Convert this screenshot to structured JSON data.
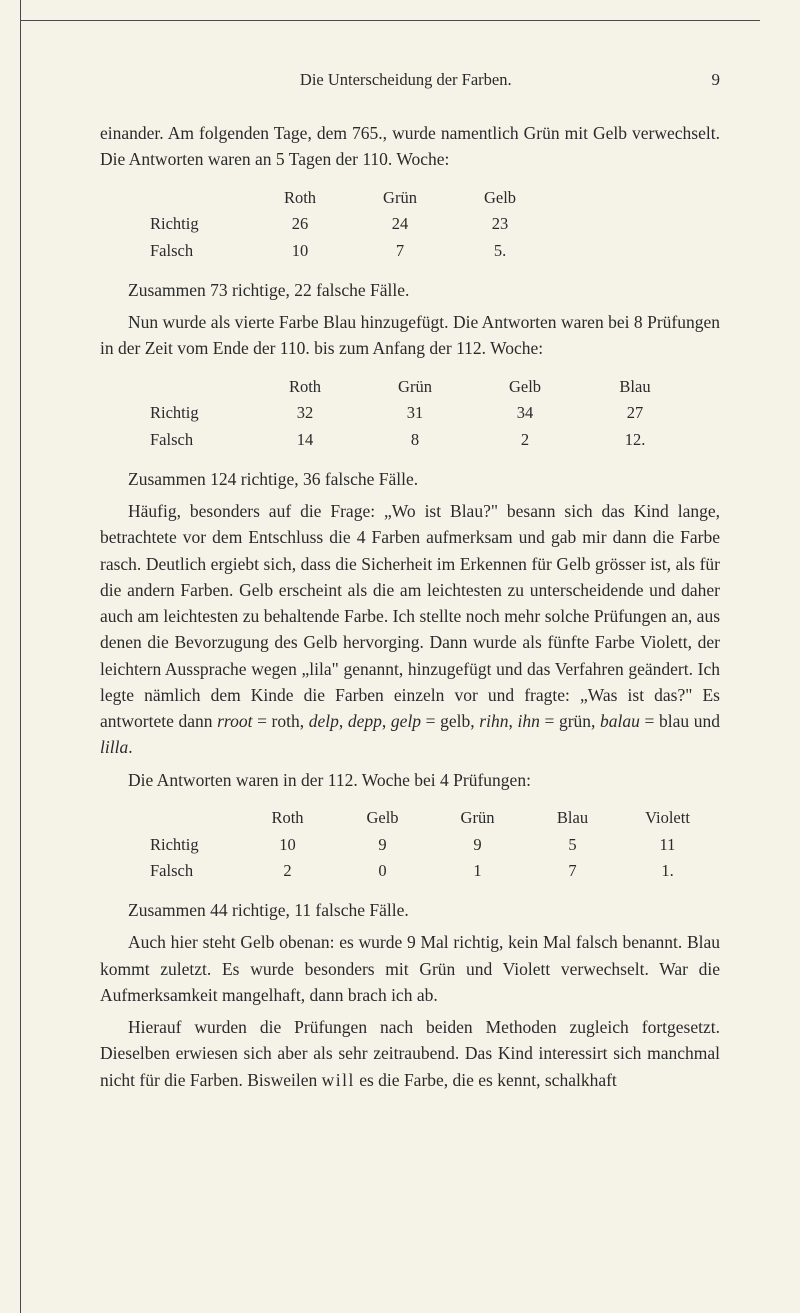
{
  "page": {
    "running_title": "Die Unterscheidung der Farben.",
    "page_number": "9"
  },
  "colors": {
    "background": "#f5f3e8",
    "text": "#2a2a2a",
    "rule": "#4a4a4a"
  },
  "typography": {
    "body_fontsize_pt": 13,
    "header_fontsize_pt": 12,
    "font_family": "Georgia/serif"
  },
  "p1": "einander. Am folgenden Tage, dem 765., wurde namentlich Grün mit Gelb verwechselt. Die Antworten waren an 5 Tagen der 110. Woche:",
  "table1": {
    "type": "table",
    "columns": [
      "",
      "Roth",
      "Grün",
      "Gelb"
    ],
    "rows": [
      [
        "Richtig",
        "26",
        "24",
        "23"
      ],
      [
        "Falsch",
        "10",
        "7",
        "5."
      ]
    ]
  },
  "s1": "Zusammen 73 richtige, 22 falsche Fälle.",
  "p2": "Nun wurde als vierte Farbe Blau hinzugefügt. Die Antworten waren bei 8 Prüfungen in der Zeit vom Ende der 110. bis zum Anfang der 112. Woche:",
  "table2": {
    "type": "table",
    "columns": [
      "",
      "Roth",
      "Grün",
      "Gelb",
      "Blau"
    ],
    "rows": [
      [
        "Richtig",
        "32",
        "31",
        "34",
        "27"
      ],
      [
        "Falsch",
        "14",
        "8",
        "2",
        "12."
      ]
    ]
  },
  "s2": "Zusammen 124 richtige, 36 falsche Fälle.",
  "p3a": "Häufig, besonders auf die Frage: „Wo ist Blau?\" besann sich das Kind lange, betrachtete vor dem Entschluss die 4 Farben aufmerksam und gab mir dann die Farbe rasch. Deutlich ergiebt sich, dass die Sicherheit im Erkennen für Gelb grösser ist, als für die andern Farben. Gelb erscheint als die am leichtesten zu unterscheidende und daher auch am leichtesten zu behaltende Farbe. Ich stellte noch mehr solche Prüfungen an, aus denen die Bevorzugung des Gelb hervorging. Dann wurde als fünfte Farbe Violett, der leichtern Aussprache wegen „lila\" genannt, hinzugefügt und das Verfahren geändert. Ich legte nämlich dem Kinde die Farben einzeln vor und fragte: „Was ist das?\" Es antwortete dann ",
  "p3_i1": "rroot",
  "p3b": " = roth, ",
  "p3_i2": "delp",
  "p3c": ", ",
  "p3_i3": "depp",
  "p3d": ", ",
  "p3_i4": "gelp",
  "p3e": " = gelb, ",
  "p3_i5": "rihn",
  "p3f": ", ",
  "p3_i6": "ihn",
  "p3g": " = grün, ",
  "p3_i7": "balau",
  "p3h": " = blau und ",
  "p3_i8": "lilla",
  "p3i": ".",
  "p4": "Die Antworten waren in der 112. Woche bei 4 Prüfungen:",
  "table3": {
    "type": "table",
    "columns": [
      "",
      "Roth",
      "Gelb",
      "Grün",
      "Blau",
      "Violett"
    ],
    "rows": [
      [
        "Richtig",
        "10",
        "9",
        "9",
        "5",
        "11"
      ],
      [
        "Falsch",
        "2",
        "0",
        "1",
        "7",
        "1."
      ]
    ]
  },
  "s3": "Zusammen 44 richtige, 11 falsche Fälle.",
  "p5": "Auch hier steht Gelb obenan: es wurde 9 Mal richtig, kein Mal falsch benannt. Blau kommt zuletzt. Es wurde besonders mit Grün und Violett verwechselt. War die Aufmerksamkeit mangelhaft, dann brach ich ab.",
  "p6a": "Hierauf wurden die Prüfungen nach beiden Methoden zugleich fortgesetzt. Dieselben erwiesen sich aber als sehr zeitraubend. Das Kind interessirt sich manchmal nicht für die Farben. Bisweilen ",
  "p6_spaced": "will",
  "p6b": " es die Farbe, die es kennt, schalkhaft"
}
